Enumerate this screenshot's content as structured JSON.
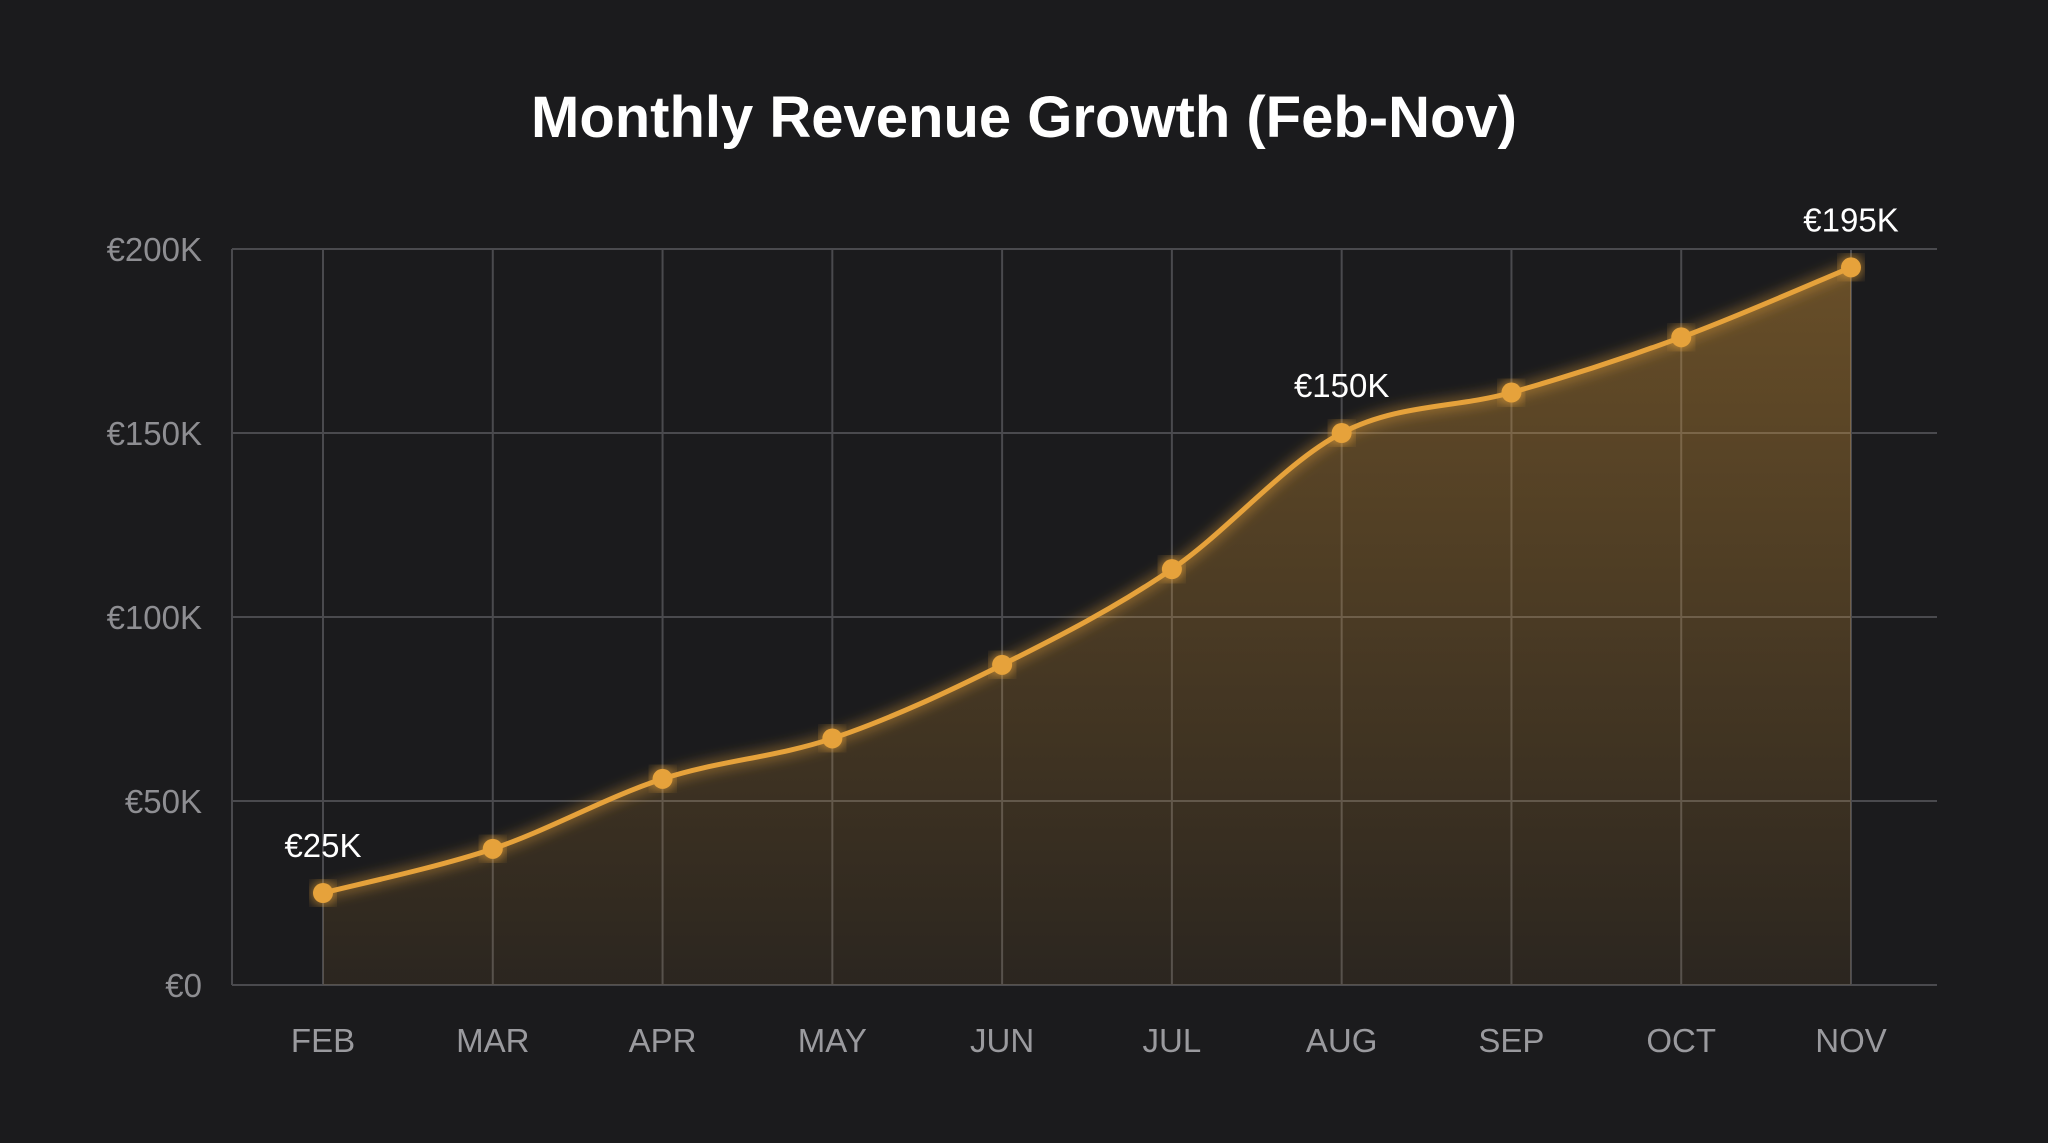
{
  "chart_data": {
    "type": "area",
    "title": "Monthly Revenue Growth (Feb-Nov)",
    "xlabel": "",
    "ylabel": "",
    "categories": [
      "FEB",
      "MAR",
      "APR",
      "MAY",
      "JUN",
      "JUL",
      "AUG",
      "SEP",
      "OCT",
      "NOV"
    ],
    "series": [
      {
        "values": [
          25,
          37,
          56,
          67,
          87,
          113,
          150,
          161,
          176,
          195
        ]
      }
    ],
    "unit": "K EUR",
    "ylim": [
      0,
      200
    ],
    "yticks": [
      0,
      50,
      100,
      150,
      200
    ],
    "ytick_labels": [
      "€0",
      "€50K",
      "€100K",
      "€150K",
      "€200K"
    ],
    "data_labels": [
      {
        "category": "FEB",
        "text": "€25K"
      },
      {
        "category": "AUG",
        "text": "€150K"
      },
      {
        "category": "NOV",
        "text": "€195K"
      }
    ],
    "grid": true,
    "smooth": true,
    "colors": {
      "background": "#1b1b1d",
      "line": "#e6a23a",
      "grid": "#4a4a4e"
    }
  }
}
